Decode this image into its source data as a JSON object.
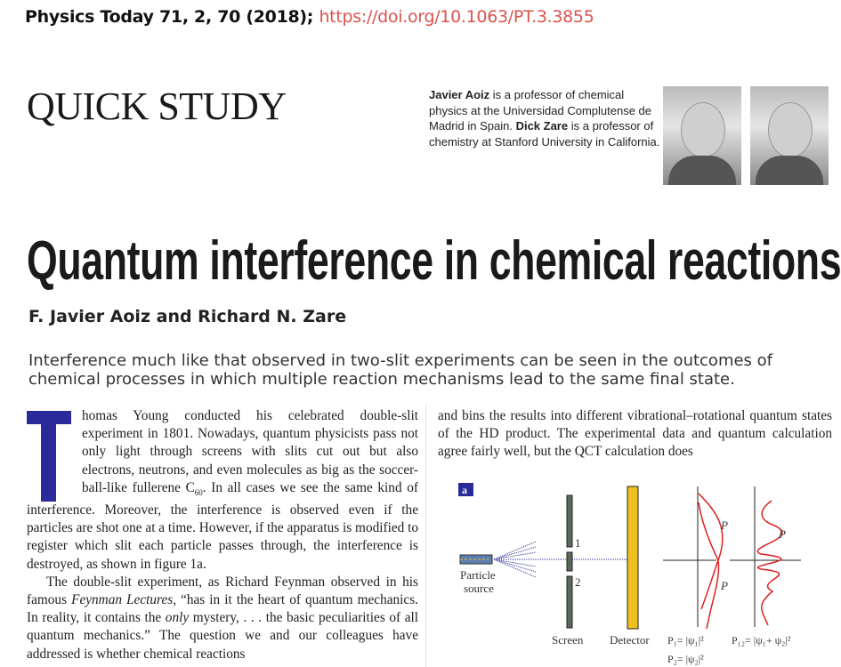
{
  "citation": {
    "journal": "Physics Today 71, 2, 70 (2018);",
    "doi": "https://doi.org/10.1063/PT.3.3855"
  },
  "section": "QUICK STUDY",
  "bio": {
    "name1": "Javier Aoiz",
    "text1": " is a professor of chemical physics at the Universidad Complutense de Madrid in Spain. ",
    "name2": "Dick Zare",
    "text2": " is a professor of chemistry at Stanford University in California."
  },
  "title": "Quantum interference in chemical reactions",
  "authors": "F. Javier Aoiz and Richard N. Zare",
  "abstract": "Interference much like that observed in two-slit experiments can be seen in the outcomes of chemical processes in which multiple reaction mechanisms lead to the same final state.",
  "body": {
    "p1a": "homas Young conducted his celebrated double-slit experiment in 1801. Nowadays, quantum physicists pass not only light through screens with slits cut out but also electrons, neutrons, and even molecules as big as the soccer-ball-like fullerene C",
    "p1sub": "60",
    "p1b": ". In all cases we see the same kind of interference. Moreover, the interference is observed even if the particles are shot one at a time. However, if the apparatus is modified to register which slit each particle passes through, the interference is destroyed, as shown in figure 1a.",
    "p2a": "The double-slit experiment, as Richard Feynman observed in his famous ",
    "p2i": "Feynman Lectures",
    "p2b": ", “has in it the heart of quantum mechanics. In reality, it contains the ",
    "p2i2": "only",
    "p2c": " mystery, . . . the basic peculiarities of all quantum mechanics.” The question we and our colleagues have addressed is whether chemical reactions",
    "col2": "and bins the results into different vibrational–rotational quantum states of the HD product. The experimental data and quantum calculation agree fairly well, but the QCT calculation does"
  },
  "figure": {
    "panel": "a",
    "source": "Particle",
    "source2": "source",
    "slit1": "1",
    "slit2": "2",
    "screen": "Screen",
    "detector": "Detector",
    "p1": "P",
    "p1sub": "1",
    "p2": "P",
    "p2sub": "2",
    "p12": "P",
    "p12sub": "12",
    "eq1": "P₁= |ψ₁|²",
    "eq2": "P₂= |ψ₂|²",
    "eq12": "P₁₂= |ψ₁+ ψ₂|²"
  },
  "colors": {
    "doi": "#d9534f",
    "dropcap": "#2a2a9a",
    "curve": "#e02020",
    "detector": "#f0c020"
  }
}
